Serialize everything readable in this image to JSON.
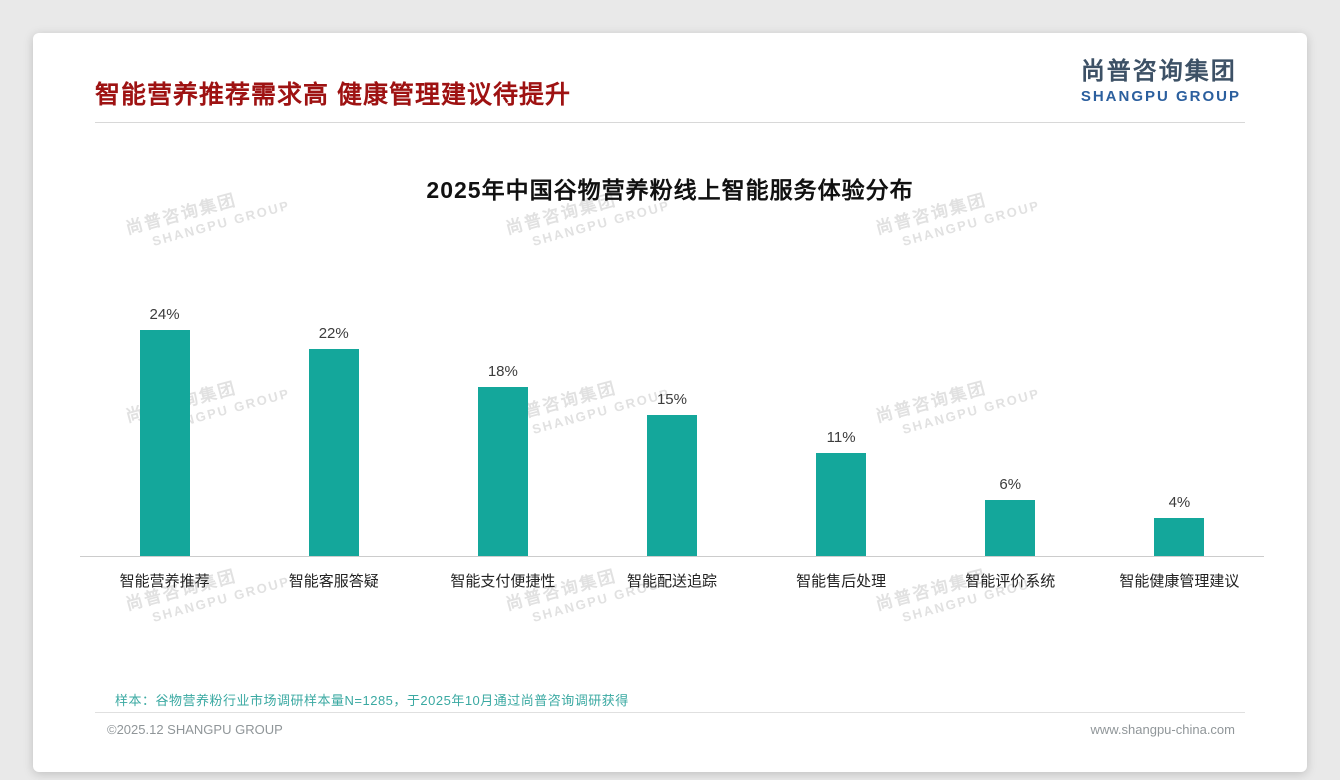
{
  "page": {
    "title": "智能营养推荐需求高 健康管理建议待提升",
    "logo": {
      "cn": "尚普咨询集团",
      "en": "SHANGPU GROUP"
    },
    "watermark": {
      "cn": "尚普咨询集团",
      "en": "SHANGPU GROUP"
    },
    "sample_note": "样本：谷物营养粉行业市场调研样本量N=1285，于2025年10月通过尚普咨询调研获得",
    "footer": {
      "left": "©2025.12 SHANGPU GROUP",
      "right": "www.shangpu-china.com"
    }
  },
  "colors": {
    "title_red": "#9e1212",
    "bar_teal": "#14a79b",
    "note_teal": "#3aa9a2",
    "logo_blue": "#2b5f9e"
  },
  "chart_data": {
    "type": "bar",
    "title": "2025年中国谷物营养粉线上智能服务体验分布",
    "categories": [
      "智能营养推荐",
      "智能客服答疑",
      "智能支付便捷性",
      "智能配送追踪",
      "智能售后处理",
      "智能评价系统",
      "智能健康管理建议"
    ],
    "values": [
      24,
      22,
      18,
      15,
      11,
      6,
      4
    ],
    "value_suffix": "%",
    "bar_color": "#14a79b",
    "xlabel": "",
    "ylabel": "",
    "ylim": [
      0,
      26
    ],
    "grid": false,
    "legend": "none",
    "value_labels": "above-bars"
  }
}
